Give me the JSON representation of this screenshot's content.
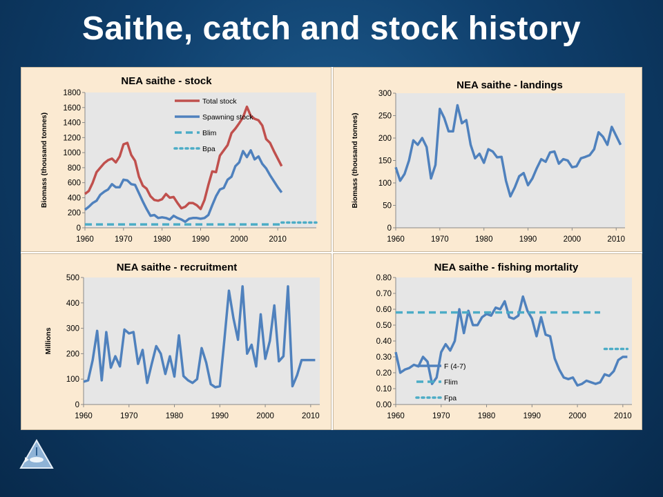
{
  "slide": {
    "title": "Saithe, catch and stock history"
  },
  "colors": {
    "stock_red": "#c0504d",
    "series_blue": "#4f81bd",
    "ref_cyan": "#4bacc6",
    "plot_bg": "#e6e6e6",
    "panel_bg": "#fbead2"
  },
  "logo": {
    "icon": "triangle-fish-logo"
  },
  "chart_data": [
    {
      "type": "line",
      "title": "NEA saithe - stock",
      "ylabel": "Biomass (thousand tonnes)",
      "xlabel": "",
      "xlim": [
        1960,
        2020
      ],
      "ylim": [
        0,
        1800
      ],
      "xticks": [
        1960,
        1970,
        1980,
        1990,
        2000,
        2010
      ],
      "yticks": [
        0,
        200,
        400,
        600,
        800,
        1000,
        1200,
        1400,
        1600,
        1800
      ],
      "ytick_decimals": 0,
      "grid": false,
      "legend": "top-center, inside plot",
      "series": [
        {
          "name": "Total stock",
          "color": "#c0504d",
          "style": "solid",
          "x": [
            1960,
            1961,
            1962,
            1963,
            1964,
            1965,
            1966,
            1967,
            1968,
            1969,
            1970,
            1971,
            1972,
            1973,
            1974,
            1975,
            1976,
            1977,
            1978,
            1979,
            1980,
            1981,
            1982,
            1983,
            1984,
            1985,
            1986,
            1987,
            1988,
            1989,
            1990,
            1991,
            1992,
            1993,
            1994,
            1995,
            1996,
            1997,
            1998,
            1999,
            2000,
            2001,
            2002,
            2003,
            2004,
            2005,
            2006,
            2007,
            2008,
            2009,
            2010,
            2011
          ],
          "y": [
            450,
            490,
            600,
            740,
            800,
            860,
            900,
            920,
            870,
            950,
            1110,
            1130,
            970,
            890,
            680,
            560,
            520,
            420,
            370,
            360,
            380,
            450,
            400,
            410,
            330,
            260,
            280,
            330,
            330,
            300,
            250,
            370,
            570,
            750,
            740,
            960,
            1030,
            1100,
            1260,
            1320,
            1390,
            1470,
            1610,
            1490,
            1450,
            1430,
            1360,
            1180,
            1130,
            1020,
            920,
            820
          ]
        },
        {
          "name": "Spawning stock",
          "color": "#4f81bd",
          "style": "solid",
          "x": [
            1960,
            1961,
            1962,
            1963,
            1964,
            1965,
            1966,
            1967,
            1968,
            1969,
            1970,
            1971,
            1972,
            1973,
            1974,
            1975,
            1976,
            1977,
            1978,
            1979,
            1980,
            1981,
            1982,
            1983,
            1984,
            1985,
            1986,
            1987,
            1988,
            1989,
            1990,
            1991,
            1992,
            1993,
            1994,
            1995,
            1996,
            1997,
            1998,
            1999,
            2000,
            2001,
            2002,
            2003,
            2004,
            2005,
            2006,
            2007,
            2008,
            2009,
            2010,
            2011
          ],
          "y": [
            240,
            280,
            330,
            360,
            440,
            480,
            510,
            580,
            540,
            540,
            640,
            630,
            580,
            570,
            460,
            350,
            250,
            160,
            170,
            130,
            140,
            130,
            110,
            160,
            130,
            110,
            80,
            120,
            130,
            130,
            120,
            130,
            170,
            300,
            420,
            510,
            530,
            640,
            680,
            820,
            870,
            1020,
            940,
            1030,
            910,
            950,
            850,
            790,
            700,
            620,
            540,
            470
          ]
        },
        {
          "name": "Blim",
          "color": "#4bacc6",
          "style": "dashed",
          "x": [
            1960,
            2011
          ],
          "y": [
            45,
            45
          ]
        },
        {
          "name": "Bpa",
          "color": "#4bacc6",
          "style": "dotted",
          "x": [
            2011,
            2020
          ],
          "y": [
            70,
            70
          ]
        }
      ]
    },
    {
      "type": "line",
      "title": "NEA saithe - landings",
      "ylabel": "Biomass (thousand tonnes)",
      "xlabel": "",
      "xlim": [
        1960,
        2012
      ],
      "ylim": [
        0,
        300
      ],
      "xticks": [
        1960,
        1970,
        1980,
        1990,
        2000,
        2010
      ],
      "yticks": [
        0,
        50,
        100,
        150,
        200,
        250,
        300
      ],
      "ytick_decimals": 0,
      "grid": false,
      "series": [
        {
          "name": "",
          "color": "#4f81bd",
          "style": "solid",
          "x": [
            1960,
            1961,
            1962,
            1963,
            1964,
            1965,
            1966,
            1967,
            1968,
            1969,
            1970,
            1971,
            1972,
            1973,
            1974,
            1975,
            1976,
            1977,
            1978,
            1979,
            1980,
            1981,
            1982,
            1983,
            1984,
            1985,
            1986,
            1987,
            1988,
            1989,
            1990,
            1991,
            1992,
            1993,
            1994,
            1995,
            1996,
            1997,
            1998,
            1999,
            2000,
            2001,
            2002,
            2003,
            2004,
            2005,
            2006,
            2007,
            2008,
            2009,
            2010,
            2011
          ],
          "y": [
            135,
            105,
            120,
            150,
            195,
            185,
            200,
            180,
            110,
            140,
            265,
            245,
            215,
            215,
            273,
            233,
            240,
            185,
            155,
            165,
            145,
            175,
            170,
            157,
            158,
            105,
            70,
            90,
            115,
            122,
            95,
            110,
            133,
            153,
            147,
            168,
            170,
            143,
            153,
            150,
            135,
            137,
            155,
            158,
            162,
            175,
            213,
            203,
            185,
            225,
            205,
            185
          ]
        }
      ]
    },
    {
      "type": "line",
      "title": "NEA saithe - recruitment",
      "ylabel": "Millions",
      "xlabel": "",
      "xlim": [
        1960,
        2012
      ],
      "ylim": [
        0,
        500
      ],
      "xticks": [
        1960,
        1970,
        1980,
        1990,
        2000,
        2010
      ],
      "yticks": [
        0,
        100,
        200,
        300,
        400,
        500
      ],
      "ytick_decimals": 0,
      "grid": false,
      "series": [
        {
          "name": "",
          "color": "#4f81bd",
          "style": "solid",
          "x": [
            1960,
            1961,
            1962,
            1963,
            1964,
            1965,
            1966,
            1967,
            1968,
            1969,
            1970,
            1971,
            1972,
            1973,
            1974,
            1975,
            1976,
            1977,
            1978,
            1979,
            1980,
            1981,
            1982,
            1983,
            1984,
            1985,
            1986,
            1987,
            1988,
            1989,
            1990,
            1991,
            1992,
            1993,
            1994,
            1995,
            1996,
            1997,
            1998,
            1999,
            2000,
            2001,
            2002,
            2003,
            2004,
            2005,
            2006,
            2007,
            2008,
            2009,
            2010,
            2011
          ],
          "y": [
            90,
            95,
            175,
            290,
            95,
            285,
            145,
            190,
            150,
            295,
            280,
            285,
            160,
            215,
            85,
            160,
            230,
            200,
            120,
            190,
            110,
            272,
            112,
            95,
            85,
            100,
            222,
            165,
            80,
            68,
            72,
            255,
            448,
            340,
            255,
            465,
            200,
            235,
            150,
            355,
            180,
            250,
            390,
            170,
            190,
            465,
            72,
            115,
            175,
            175,
            175,
            175
          ]
        }
      ]
    },
    {
      "type": "line",
      "title": "NEA saithe - fishing mortality",
      "ylabel": "",
      "xlabel": "",
      "xlim": [
        1960,
        2012
      ],
      "ylim": [
        0,
        0.8
      ],
      "xticks": [
        1960,
        1970,
        1980,
        1990,
        2000,
        2010
      ],
      "yticks": [
        0,
        0.1,
        0.2,
        0.3,
        0.4,
        0.5,
        0.6,
        0.7,
        0.8
      ],
      "ytick_decimals": 2,
      "grid": false,
      "legend": "bottom-left, inside plot",
      "series": [
        {
          "name": "F (4-7)",
          "color": "#4f81bd",
          "style": "solid",
          "x": [
            1960,
            1961,
            1962,
            1963,
            1964,
            1965,
            1966,
            1967,
            1968,
            1969,
            1970,
            1971,
            1972,
            1973,
            1974,
            1975,
            1976,
            1977,
            1978,
            1979,
            1980,
            1981,
            1982,
            1983,
            1984,
            1985,
            1986,
            1987,
            1988,
            1989,
            1990,
            1991,
            1992,
            1993,
            1994,
            1995,
            1996,
            1997,
            1998,
            1999,
            2000,
            2001,
            2002,
            2003,
            2004,
            2005,
            2006,
            2007,
            2008,
            2009,
            2010,
            2011
          ],
          "y": [
            0.33,
            0.2,
            0.22,
            0.23,
            0.25,
            0.24,
            0.3,
            0.27,
            0.13,
            0.17,
            0.33,
            0.38,
            0.34,
            0.4,
            0.6,
            0.45,
            0.59,
            0.5,
            0.5,
            0.55,
            0.57,
            0.56,
            0.61,
            0.6,
            0.65,
            0.55,
            0.54,
            0.56,
            0.68,
            0.59,
            0.54,
            0.43,
            0.55,
            0.44,
            0.43,
            0.29,
            0.22,
            0.17,
            0.16,
            0.17,
            0.12,
            0.13,
            0.15,
            0.14,
            0.13,
            0.14,
            0.19,
            0.18,
            0.21,
            0.28,
            0.3,
            0.3
          ]
        },
        {
          "name": "Flim",
          "color": "#4bacc6",
          "style": "dashed",
          "x": [
            1960,
            2005
          ],
          "y": [
            0.58,
            0.58
          ]
        },
        {
          "name": "Fpa",
          "color": "#4bacc6",
          "style": "dotted",
          "x": [
            2006,
            2011
          ],
          "y": [
            0.35,
            0.35
          ]
        }
      ]
    }
  ]
}
